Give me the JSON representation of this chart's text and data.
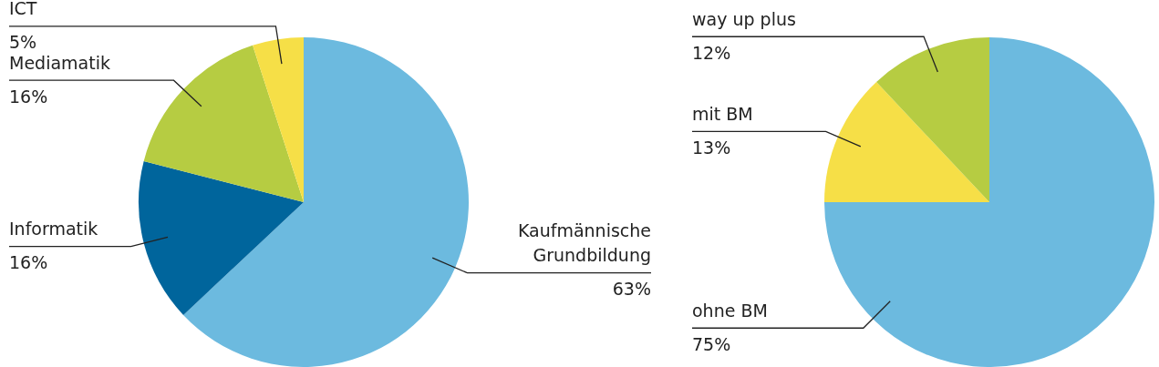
{
  "chart_data": [
    {
      "type": "pie",
      "categories": [
        "Kaufmännische\nGrundbildung",
        "Informatik",
        "Mediamatik",
        "ICT"
      ],
      "values": [
        63,
        16,
        16,
        5
      ],
      "value_labels": [
        "63%",
        "16%",
        "16%",
        "5%"
      ],
      "colors": [
        "#6cbadf",
        "#00659c",
        "#b6cc42",
        "#f6df47"
      ],
      "legend": false
    },
    {
      "type": "pie",
      "categories": [
        "ohne BM",
        "mit BM",
        "way up plus"
      ],
      "values": [
        75,
        13,
        12
      ],
      "value_labels": [
        "75%",
        "13%",
        "12%"
      ],
      "colors": [
        "#6cbadf",
        "#f6df47",
        "#b6cc42"
      ],
      "legend": false
    }
  ]
}
